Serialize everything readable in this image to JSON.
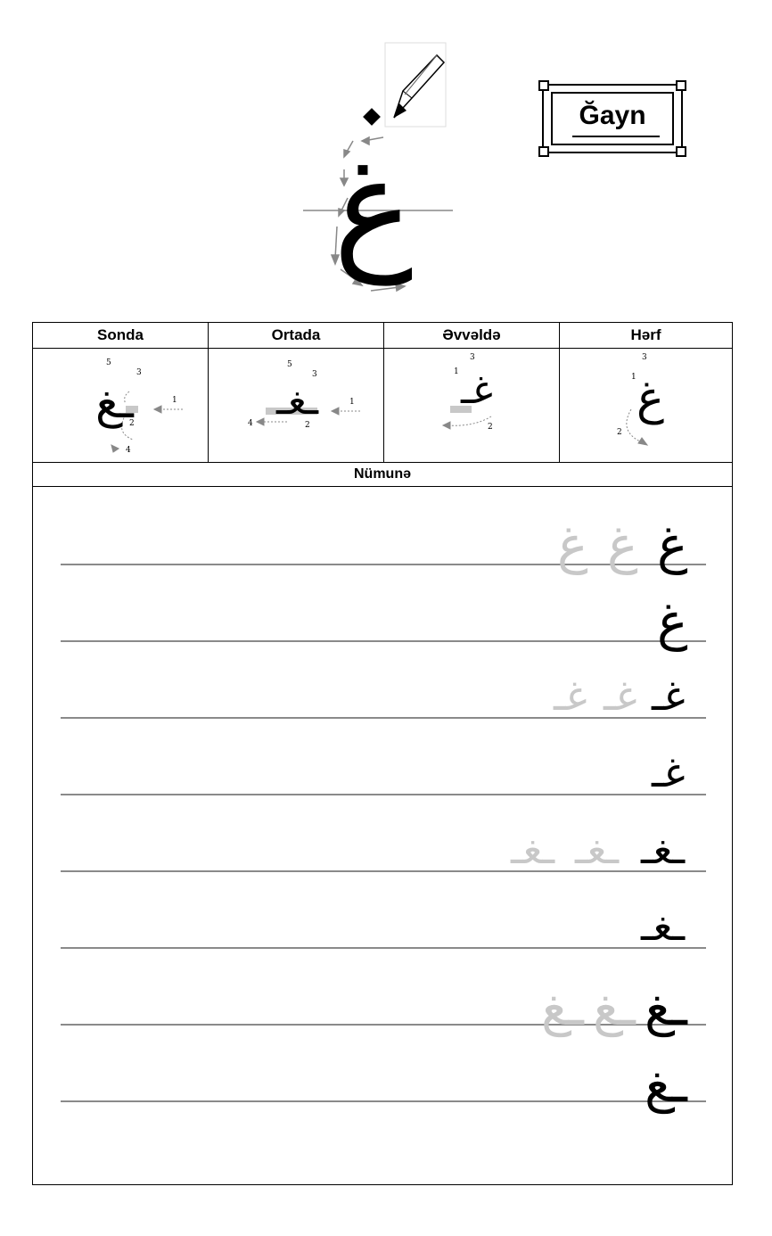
{
  "letter": "غ",
  "title": "Ğayn",
  "table": {
    "headers": [
      "Sonda",
      "Ortada",
      "Əvvəldə",
      "Hərf"
    ],
    "forms": {
      "final": "ـغ",
      "medial": "ـغـ",
      "initial": "غـ",
      "isolated": "غ"
    },
    "stroke_numbers": {
      "final": [
        "5",
        "3",
        "1",
        "2",
        "4"
      ],
      "medial": [
        "5",
        "3",
        "1",
        "4",
        "2"
      ],
      "initial": [
        "3",
        "1",
        "2"
      ],
      "isolated": [
        "3",
        "1",
        "2"
      ]
    },
    "example_header": "Nümunə"
  },
  "practice": [
    {
      "dark": "غ",
      "light": [
        "غ",
        "غ"
      ]
    },
    {
      "dark": "غ",
      "light": []
    },
    {
      "dark": "غـ",
      "light": [
        "غـ",
        "غـ"
      ]
    },
    {
      "dark": "غـ",
      "light": []
    },
    {
      "dark": "ـغـ",
      "light": [
        "ـغـ",
        "ـغـ"
      ]
    },
    {
      "dark": "ـغـ",
      "light": []
    },
    {
      "dark": "ـغ",
      "light": [
        "ـغ",
        "ـغ"
      ]
    },
    {
      "dark": "ـغ",
      "light": []
    }
  ],
  "colors": {
    "guide_line": "#8a8a8a",
    "trace_glyph": "#c8c8c8",
    "arrow": "#888888"
  }
}
